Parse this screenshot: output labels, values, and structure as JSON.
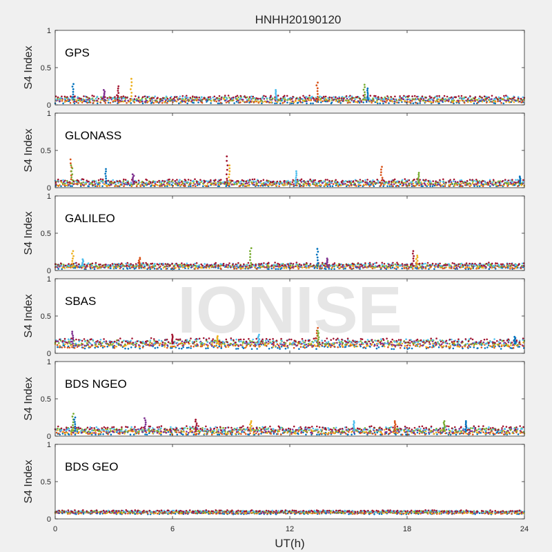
{
  "watermark": "IONISE",
  "chart_data": {
    "type": "scatter",
    "title": "HNHH20190120",
    "xlabel": "UT(h)",
    "ylabel": "S4 Index",
    "xlim": [
      0,
      24
    ],
    "ylim": [
      0,
      1
    ],
    "x_ticks": [
      0,
      6,
      12,
      18,
      24
    ],
    "y_ticks": [
      0,
      0.5,
      1
    ],
    "y_tick_labels": [
      "0",
      "0.5",
      "1"
    ],
    "series_colors": [
      "#0072BD",
      "#D95319",
      "#EDB120",
      "#7E2F8E",
      "#77AC30",
      "#4DBEEE",
      "#A2142F"
    ],
    "grid": false,
    "panels": [
      {
        "label": "GPS",
        "baseline": 0.07,
        "spread": 0.03,
        "spikes": [
          {
            "x": 0.9,
            "y": 0.28
          },
          {
            "x": 2.5,
            "y": 0.2
          },
          {
            "x": 3.2,
            "y": 0.25
          },
          {
            "x": 3.9,
            "y": 0.35
          },
          {
            "x": 11.3,
            "y": 0.2
          },
          {
            "x": 13.4,
            "y": 0.3
          },
          {
            "x": 15.8,
            "y": 0.27
          },
          {
            "x": 16.0,
            "y": 0.22
          }
        ]
      },
      {
        "label": "GLONASS",
        "baseline": 0.06,
        "spread": 0.03,
        "spikes": [
          {
            "x": 0.8,
            "y": 0.38
          },
          {
            "x": 0.85,
            "y": 0.3
          },
          {
            "x": 2.6,
            "y": 0.25
          },
          {
            "x": 4.0,
            "y": 0.18
          },
          {
            "x": 8.8,
            "y": 0.42
          },
          {
            "x": 8.9,
            "y": 0.3
          },
          {
            "x": 12.3,
            "y": 0.22
          },
          {
            "x": 16.7,
            "y": 0.28
          },
          {
            "x": 18.6,
            "y": 0.2
          },
          {
            "x": 23.8,
            "y": 0.15
          }
        ]
      },
      {
        "label": "GALILEO",
        "baseline": 0.06,
        "spread": 0.025,
        "spikes": [
          {
            "x": 0.9,
            "y": 0.26
          },
          {
            "x": 1.4,
            "y": 0.15
          },
          {
            "x": 4.3,
            "y": 0.17
          },
          {
            "x": 10.0,
            "y": 0.3
          },
          {
            "x": 13.4,
            "y": 0.29
          },
          {
            "x": 13.9,
            "y": 0.16
          },
          {
            "x": 18.3,
            "y": 0.26
          },
          {
            "x": 18.5,
            "y": 0.2
          }
        ]
      },
      {
        "label": "SBAS",
        "baseline": 0.13,
        "spread": 0.04,
        "spikes": [
          {
            "x": 0.9,
            "y": 0.29
          },
          {
            "x": 6.0,
            "y": 0.25
          },
          {
            "x": 8.3,
            "y": 0.23
          },
          {
            "x": 10.4,
            "y": 0.25
          },
          {
            "x": 13.4,
            "y": 0.34
          },
          {
            "x": 13.45,
            "y": 0.3
          },
          {
            "x": 23.5,
            "y": 0.22
          }
        ]
      },
      {
        "label": "BDS NGEO",
        "baseline": 0.07,
        "spread": 0.035,
        "spikes": [
          {
            "x": 0.9,
            "y": 0.3
          },
          {
            "x": 1.0,
            "y": 0.25
          },
          {
            "x": 4.6,
            "y": 0.24
          },
          {
            "x": 7.2,
            "y": 0.22
          },
          {
            "x": 10.0,
            "y": 0.2
          },
          {
            "x": 15.3,
            "y": 0.2
          },
          {
            "x": 17.4,
            "y": 0.2
          },
          {
            "x": 19.9,
            "y": 0.2
          },
          {
            "x": 21.0,
            "y": 0.2
          }
        ]
      },
      {
        "label": "BDS GEO",
        "baseline": 0.09,
        "spread": 0.015,
        "spikes": []
      }
    ]
  }
}
